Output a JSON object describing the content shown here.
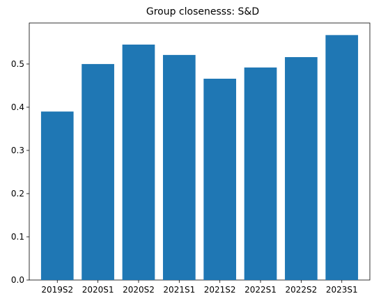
{
  "chart_data": {
    "type": "bar",
    "title": "Group closenesss: S&D",
    "xlabel": "",
    "ylabel": "",
    "categories": [
      "2019S2",
      "2020S1",
      "2020S2",
      "2021S1",
      "2021S2",
      "2022S1",
      "2022S2",
      "2023S1"
    ],
    "values": [
      0.39,
      0.5,
      0.545,
      0.521,
      0.466,
      0.492,
      0.516,
      0.567
    ],
    "ylim": [
      0,
      0.595
    ],
    "yticks": [
      0.0,
      0.1,
      0.2,
      0.3,
      0.4,
      0.5
    ],
    "ytick_labels": [
      "0.0",
      "0.1",
      "0.2",
      "0.3",
      "0.4",
      "0.5"
    ],
    "grid": false,
    "legend": "none",
    "colors": {
      "bar": "#1f77b4",
      "axis": "#000000",
      "background": "#ffffff"
    }
  }
}
